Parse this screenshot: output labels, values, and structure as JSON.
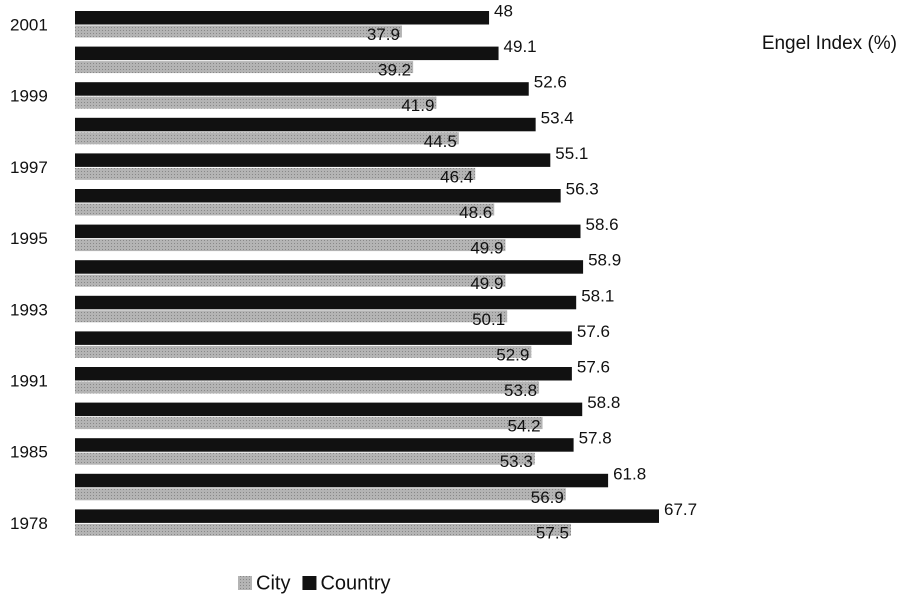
{
  "chart_data": {
    "type": "bar",
    "orientation": "horizontal",
    "title": "Engel Index (%)",
    "categories": [
      "2001",
      null,
      "1999",
      null,
      "1997",
      null,
      "1995",
      null,
      "1993",
      null,
      "1991",
      null,
      "1985",
      null,
      "1978"
    ],
    "series": [
      {
        "name": "City",
        "color": "#a8a8a8",
        "values": [
          37.9,
          39.2,
          41.9,
          44.5,
          46.4,
          48.6,
          49.9,
          49.9,
          50.1,
          52.9,
          53.8,
          54.2,
          53.3,
          56.9,
          57.5
        ]
      },
      {
        "name": "Country",
        "color": "#111111",
        "values": [
          48,
          49.1,
          52.6,
          53.4,
          55.1,
          56.3,
          58.6,
          58.9,
          58.1,
          57.6,
          57.6,
          58.8,
          57.8,
          61.8,
          67.7
        ]
      }
    ]
  }
}
